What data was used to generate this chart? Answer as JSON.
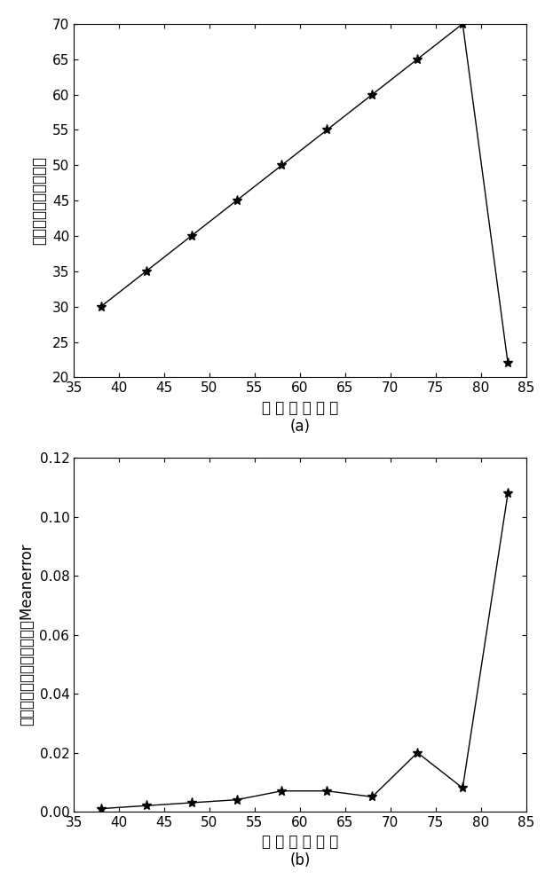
{
  "chart_a": {
    "x": [
      38,
      43,
      48,
      53,
      58,
      63,
      68,
      73,
      78,
      83
    ],
    "y": [
      30,
      35,
      40,
      45,
      50,
      55,
      60,
      65,
      70,
      22
    ],
    "xlim": [
      35,
      85
    ],
    "ylim": [
      20,
      70
    ],
    "xticks": [
      35,
      40,
      45,
      50,
      55,
      60,
      65,
      70,
      75,
      80,
      85
    ],
    "yticks": [
      20,
      25,
      30,
      35,
      40,
      45,
      50,
      55,
      60,
      65,
      70
    ],
    "xlabel": "网 络 节 点 个 数",
    "ylabel": "未知节点定位准确个数",
    "label_bottom": "(a)"
  },
  "chart_b": {
    "x": [
      38,
      43,
      48,
      53,
      58,
      63,
      68,
      73,
      78,
      83
    ],
    "y": [
      0.001,
      0.002,
      0.003,
      0.004,
      0.007,
      0.007,
      0.005,
      0.02,
      0.008,
      0.108
    ],
    "xlim": [
      35,
      85
    ],
    "ylim": [
      0,
      0.12
    ],
    "xticks": [
      35,
      40,
      45,
      50,
      55,
      60,
      65,
      70,
      75,
      80,
      85
    ],
    "yticks": [
      0,
      0.02,
      0.04,
      0.06,
      0.08,
      0.1,
      0.12
    ],
    "xlabel": "网 络 节 点 个 数",
    "ylabel": "未知节点定位平均误差距离Meanerror",
    "label_bottom": "(b)"
  },
  "line_color": "#000000",
  "marker": "*",
  "marker_size": 8,
  "linewidth": 1.0,
  "font_size_label": 12,
  "font_size_tick": 11,
  "font_size_sublabel": 12
}
